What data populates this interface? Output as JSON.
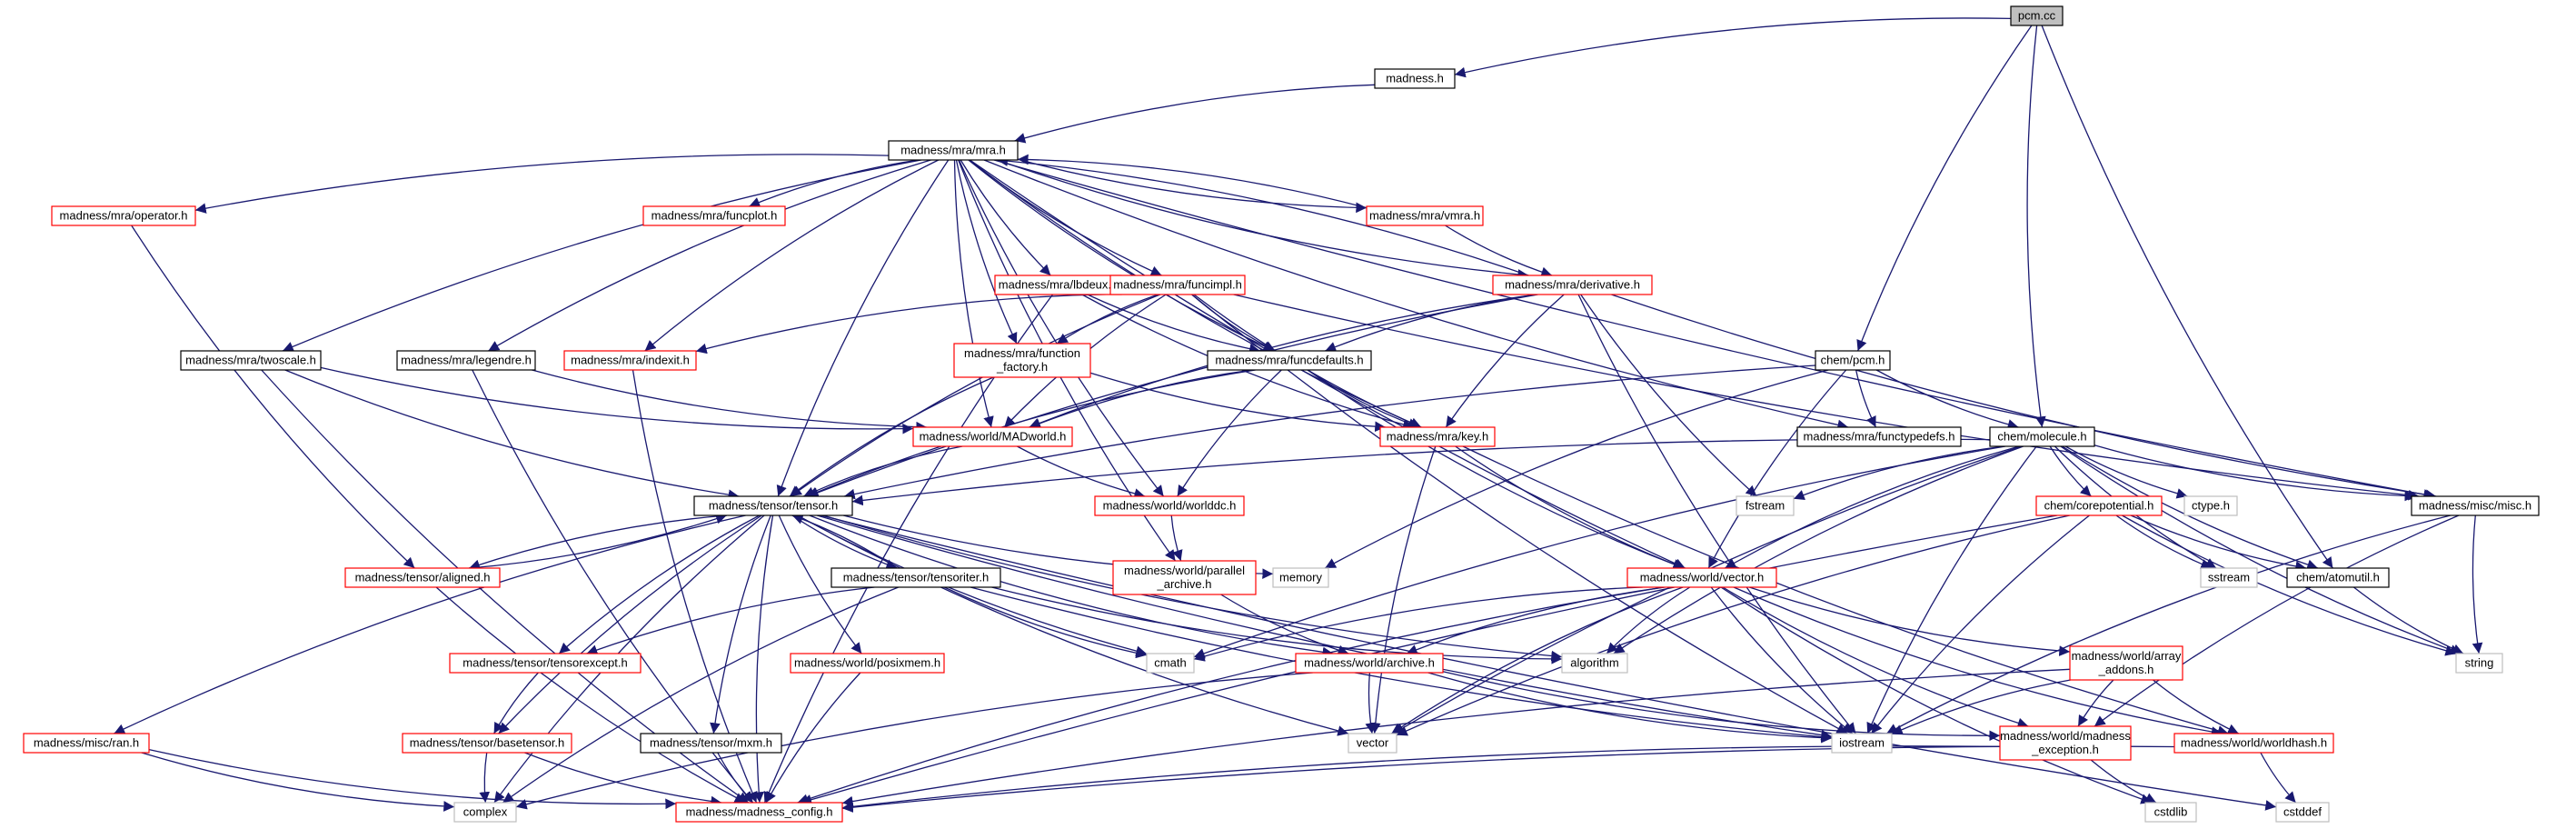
{
  "diagram": {
    "colors": {
      "edge": "#191970",
      "border_normal": "#000000",
      "border_missing": "#ff0000",
      "border_system": "#bfbfbf",
      "root_fill": "#bfbfbf"
    },
    "nodes": [
      {
        "id": "pcm_cc",
        "kind": "root",
        "lines": [
          "pcm.cc"
        ]
      },
      {
        "id": "madness_h",
        "kind": "normal",
        "lines": [
          "madness.h"
        ]
      },
      {
        "id": "mra_h",
        "kind": "normal",
        "lines": [
          "madness/mra/mra.h"
        ]
      },
      {
        "id": "operator_h",
        "kind": "missing",
        "lines": [
          "madness/mra/operator.h"
        ]
      },
      {
        "id": "funcplot_h",
        "kind": "missing",
        "lines": [
          "madness/mra/funcplot.h"
        ]
      },
      {
        "id": "vmra_h",
        "kind": "missing",
        "lines": [
          "madness/mra/vmra.h"
        ]
      },
      {
        "id": "lbdeux_h",
        "kind": "missing",
        "lines": [
          "madness/mra/lbdeux.h"
        ]
      },
      {
        "id": "funcimpl_h",
        "kind": "missing",
        "lines": [
          "madness/mra/funcimpl.h"
        ]
      },
      {
        "id": "derivative_h",
        "kind": "missing",
        "lines": [
          "madness/mra/derivative.h"
        ]
      },
      {
        "id": "twoscale_h",
        "kind": "normal",
        "lines": [
          "madness/mra/twoscale.h"
        ]
      },
      {
        "id": "legendre_h",
        "kind": "normal",
        "lines": [
          "madness/mra/legendre.h"
        ]
      },
      {
        "id": "indexit_h",
        "kind": "missing",
        "lines": [
          "madness/mra/indexit.h"
        ]
      },
      {
        "id": "function_factory_h",
        "kind": "missing",
        "lines": [
          "madness/mra/function",
          "_factory.h"
        ]
      },
      {
        "id": "funcdefaults_h",
        "kind": "normal",
        "lines": [
          "madness/mra/funcdefaults.h"
        ]
      },
      {
        "id": "chem_pcm_h",
        "kind": "normal",
        "lines": [
          "chem/pcm.h"
        ]
      },
      {
        "id": "madworld_h",
        "kind": "missing",
        "lines": [
          "madness/world/MADworld.h"
        ]
      },
      {
        "id": "key_h",
        "kind": "missing",
        "lines": [
          "madness/mra/key.h"
        ]
      },
      {
        "id": "functypedefs_h",
        "kind": "normal",
        "lines": [
          "madness/mra/functypedefs.h"
        ]
      },
      {
        "id": "molecule_h",
        "kind": "normal",
        "lines": [
          "chem/molecule.h"
        ]
      },
      {
        "id": "tensor_h",
        "kind": "normal",
        "lines": [
          "madness/tensor/tensor.h"
        ]
      },
      {
        "id": "worlddc_h",
        "kind": "missing",
        "lines": [
          "madness/world/worlddc.h"
        ]
      },
      {
        "id": "fstream",
        "kind": "system",
        "lines": [
          "fstream"
        ]
      },
      {
        "id": "ctype_h",
        "kind": "system",
        "lines": [
          "ctype.h"
        ]
      },
      {
        "id": "misc_h",
        "kind": "normal",
        "lines": [
          "madness/misc/misc.h"
        ]
      },
      {
        "id": "aligned_h",
        "kind": "missing",
        "lines": [
          "madness/tensor/aligned.h"
        ]
      },
      {
        "id": "tensoriter_h",
        "kind": "normal",
        "lines": [
          "madness/tensor/tensoriter.h"
        ]
      },
      {
        "id": "parallel_archive_h",
        "kind": "missing",
        "lines": [
          "madness/world/parallel",
          "_archive.h"
        ]
      },
      {
        "id": "memory",
        "kind": "system",
        "lines": [
          "memory"
        ]
      },
      {
        "id": "vector_h",
        "kind": "missing",
        "lines": [
          "madness/world/vector.h"
        ]
      },
      {
        "id": "corepotential_h",
        "kind": "missing",
        "lines": [
          "chem/corepotential.h"
        ]
      },
      {
        "id": "sstream",
        "kind": "system",
        "lines": [
          "sstream"
        ]
      },
      {
        "id": "atomutil_h",
        "kind": "normal",
        "lines": [
          "chem/atomutil.h"
        ]
      },
      {
        "id": "tensorexcept_h",
        "kind": "missing",
        "lines": [
          "madness/tensor/tensorexcept.h"
        ]
      },
      {
        "id": "posixmem_h",
        "kind": "missing",
        "lines": [
          "madness/world/posixmem.h"
        ]
      },
      {
        "id": "cmath",
        "kind": "system",
        "lines": [
          "cmath"
        ]
      },
      {
        "id": "algorithm",
        "kind": "system",
        "lines": [
          "algorithm"
        ]
      },
      {
        "id": "archive_h",
        "kind": "missing",
        "lines": [
          "madness/world/archive.h"
        ]
      },
      {
        "id": "array_addons_h",
        "kind": "missing",
        "lines": [
          "madness/world/array",
          "_addons.h"
        ]
      },
      {
        "id": "string",
        "kind": "system",
        "lines": [
          "string"
        ]
      },
      {
        "id": "ran_h",
        "kind": "missing",
        "lines": [
          "madness/misc/ran.h"
        ]
      },
      {
        "id": "basetensor_h",
        "kind": "missing",
        "lines": [
          "madness/tensor/basetensor.h"
        ]
      },
      {
        "id": "mxm_h",
        "kind": "normal",
        "lines": [
          "madness/tensor/mxm.h"
        ]
      },
      {
        "id": "vector",
        "kind": "system",
        "lines": [
          "vector"
        ]
      },
      {
        "id": "iostream",
        "kind": "system",
        "lines": [
          "iostream"
        ]
      },
      {
        "id": "madness_exception_h",
        "kind": "missing",
        "lines": [
          "madness/world/madness",
          "_exception.h"
        ]
      },
      {
        "id": "worldhash_h",
        "kind": "missing",
        "lines": [
          "madness/world/worldhash.h"
        ]
      },
      {
        "id": "complex",
        "kind": "system",
        "lines": [
          "complex"
        ]
      },
      {
        "id": "madness_config_h",
        "kind": "missing",
        "lines": [
          "madness/madness_config.h"
        ]
      },
      {
        "id": "cstdlib",
        "kind": "system",
        "lines": [
          "cstdlib"
        ]
      },
      {
        "id": "cstddef",
        "kind": "system",
        "lines": [
          "cstddef"
        ]
      }
    ],
    "edges": [
      [
        "pcm_cc",
        "madness_h"
      ],
      [
        "pcm_cc",
        "chem_pcm_h"
      ],
      [
        "pcm_cc",
        "molecule_h"
      ],
      [
        "pcm_cc",
        "atomutil_h"
      ],
      [
        "madness_h",
        "mra_h"
      ],
      [
        "mra_h",
        "operator_h"
      ],
      [
        "mra_h",
        "funcplot_h"
      ],
      [
        "mra_h",
        "vmra_h"
      ],
      [
        "mra_h",
        "lbdeux_h"
      ],
      [
        "mra_h",
        "funcimpl_h"
      ],
      [
        "mra_h",
        "derivative_h"
      ],
      [
        "mra_h",
        "twoscale_h"
      ],
      [
        "mra_h",
        "legendre_h"
      ],
      [
        "mra_h",
        "indexit_h"
      ],
      [
        "mra_h",
        "function_factory_h"
      ],
      [
        "mra_h",
        "funcdefaults_h"
      ],
      [
        "mra_h",
        "madworld_h"
      ],
      [
        "mra_h",
        "key_h"
      ],
      [
        "mra_h",
        "functypedefs_h"
      ],
      [
        "mra_h",
        "tensor_h"
      ],
      [
        "mra_h",
        "worlddc_h"
      ],
      [
        "mra_h",
        "misc_h"
      ],
      [
        "mra_h",
        "parallel_archive_h"
      ],
      [
        "mra_h",
        "vector_h"
      ],
      [
        "operator_h",
        "aligned_h"
      ],
      [
        "vmra_h",
        "mra_h"
      ],
      [
        "vmra_h",
        "derivative_h"
      ],
      [
        "lbdeux_h",
        "funcdefaults_h"
      ],
      [
        "lbdeux_h",
        "key_h"
      ],
      [
        "lbdeux_h",
        "madness_config_h"
      ],
      [
        "funcimpl_h",
        "indexit_h"
      ],
      [
        "funcimpl_h",
        "function_factory_h"
      ],
      [
        "funcimpl_h",
        "funcdefaults_h"
      ],
      [
        "funcimpl_h",
        "madworld_h"
      ],
      [
        "funcimpl_h",
        "key_h"
      ],
      [
        "funcimpl_h",
        "tensor_h"
      ],
      [
        "funcimpl_h",
        "misc_h"
      ],
      [
        "funcimpl_h",
        "iostream"
      ],
      [
        "derivative_h",
        "mra_h"
      ],
      [
        "derivative_h",
        "funcdefaults_h"
      ],
      [
        "derivative_h",
        "madworld_h"
      ],
      [
        "derivative_h",
        "key_h"
      ],
      [
        "derivative_h",
        "tensor_h"
      ],
      [
        "derivative_h",
        "misc_h"
      ],
      [
        "derivative_h",
        "fstream"
      ],
      [
        "derivative_h",
        "iostream"
      ],
      [
        "twoscale_h",
        "madworld_h"
      ],
      [
        "twoscale_h",
        "tensor_h"
      ],
      [
        "twoscale_h",
        "madness_config_h"
      ],
      [
        "legendre_h",
        "madworld_h"
      ],
      [
        "legendre_h",
        "madness_config_h"
      ],
      [
        "indexit_h",
        "madness_config_h"
      ],
      [
        "function_factory_h",
        "key_h"
      ],
      [
        "function_factory_h",
        "tensor_h"
      ],
      [
        "funcdefaults_h",
        "madworld_h"
      ],
      [
        "funcdefaults_h",
        "key_h"
      ],
      [
        "funcdefaults_h",
        "tensor_h"
      ],
      [
        "funcdefaults_h",
        "worlddc_h"
      ],
      [
        "funcdefaults_h",
        "vector_h"
      ],
      [
        "chem_pcm_h",
        "molecule_h"
      ],
      [
        "chem_pcm_h",
        "functypedefs_h"
      ],
      [
        "chem_pcm_h",
        "tensor_h"
      ],
      [
        "chem_pcm_h",
        "vector_h"
      ],
      [
        "chem_pcm_h",
        "memory"
      ],
      [
        "madworld_h",
        "worlddc_h"
      ],
      [
        "madworld_h",
        "tensor_h"
      ],
      [
        "key_h",
        "vector_h"
      ],
      [
        "key_h",
        "worldhash_h"
      ],
      [
        "key_h",
        "vector"
      ],
      [
        "molecule_h",
        "tensor_h"
      ],
      [
        "molecule_h",
        "fstream"
      ],
      [
        "molecule_h",
        "ctype_h"
      ],
      [
        "molecule_h",
        "misc_h"
      ],
      [
        "molecule_h",
        "corepotential_h"
      ],
      [
        "molecule_h",
        "sstream"
      ],
      [
        "molecule_h",
        "atomutil_h"
      ],
      [
        "molecule_h",
        "string"
      ],
      [
        "molecule_h",
        "vector_h"
      ],
      [
        "molecule_h",
        "iostream"
      ],
      [
        "molecule_h",
        "cmath"
      ],
      [
        "molecule_h",
        "algorithm"
      ],
      [
        "molecule_h",
        "vector"
      ],
      [
        "tensor_h",
        "aligned_h"
      ],
      [
        "tensor_h",
        "tensoriter_h"
      ],
      [
        "tensor_h",
        "memory"
      ],
      [
        "tensor_h",
        "tensorexcept_h"
      ],
      [
        "tensor_h",
        "posixmem_h"
      ],
      [
        "tensor_h",
        "cmath"
      ],
      [
        "tensor_h",
        "archive_h"
      ],
      [
        "tensor_h",
        "ran_h"
      ],
      [
        "tensor_h",
        "basetensor_h"
      ],
      [
        "tensor_h",
        "mxm_h"
      ],
      [
        "tensor_h",
        "vector"
      ],
      [
        "tensor_h",
        "complex"
      ],
      [
        "tensor_h",
        "madness_config_h"
      ],
      [
        "tensor_h",
        "algorithm"
      ],
      [
        "tensor_h",
        "iostream"
      ],
      [
        "tensor_h",
        "cstddef"
      ],
      [
        "worlddc_h",
        "parallel_archive_h"
      ],
      [
        "misc_h",
        "string"
      ],
      [
        "misc_h",
        "iostream"
      ],
      [
        "misc_h",
        "madness_exception_h"
      ],
      [
        "aligned_h",
        "tensor_h"
      ],
      [
        "aligned_h",
        "madness_config_h"
      ],
      [
        "tensoriter_h",
        "tensor_h"
      ],
      [
        "tensoriter_h",
        "tensorexcept_h"
      ],
      [
        "tensoriter_h",
        "cmath"
      ],
      [
        "tensoriter_h",
        "complex"
      ],
      [
        "tensoriter_h",
        "iostream"
      ],
      [
        "tensoriter_h",
        "algorithm"
      ],
      [
        "parallel_archive_h",
        "archive_h"
      ],
      [
        "vector_h",
        "archive_h"
      ],
      [
        "vector_h",
        "array_addons_h"
      ],
      [
        "vector_h",
        "madness_exception_h"
      ],
      [
        "vector_h",
        "worldhash_h"
      ],
      [
        "vector_h",
        "algorithm"
      ],
      [
        "vector_h",
        "vector"
      ],
      [
        "vector_h",
        "iostream"
      ],
      [
        "vector_h",
        "cmath"
      ],
      [
        "vector_h",
        "madness_config_h"
      ],
      [
        "vector_h",
        "cstdlib"
      ],
      [
        "corepotential_h",
        "atomutil_h"
      ],
      [
        "corepotential_h",
        "sstream"
      ],
      [
        "corepotential_h",
        "string"
      ],
      [
        "corepotential_h",
        "iostream"
      ],
      [
        "corepotential_h",
        "vector"
      ],
      [
        "corepotential_h",
        "madness_config_h"
      ],
      [
        "tensorexcept_h",
        "basetensor_h"
      ],
      [
        "posixmem_h",
        "madness_config_h"
      ],
      [
        "archive_h",
        "madness_exception_h"
      ],
      [
        "archive_h",
        "vector"
      ],
      [
        "archive_h",
        "iostream"
      ],
      [
        "archive_h",
        "complex"
      ],
      [
        "array_addons_h",
        "madness_exception_h"
      ],
      [
        "array_addons_h",
        "worldhash_h"
      ],
      [
        "array_addons_h",
        "iostream"
      ],
      [
        "array_addons_h",
        "madness_config_h"
      ],
      [
        "atomutil_h",
        "string"
      ],
      [
        "ran_h",
        "complex"
      ],
      [
        "ran_h",
        "madness_config_h"
      ],
      [
        "basetensor_h",
        "complex"
      ],
      [
        "basetensor_h",
        "madness_config_h"
      ],
      [
        "mxm_h",
        "madness_config_h"
      ],
      [
        "madness_exception_h",
        "cstdlib"
      ],
      [
        "madness_exception_h",
        "madness_config_h"
      ],
      [
        "worldhash_h",
        "cstddef"
      ],
      [
        "worldhash_h",
        "madness_config_h"
      ]
    ]
  }
}
